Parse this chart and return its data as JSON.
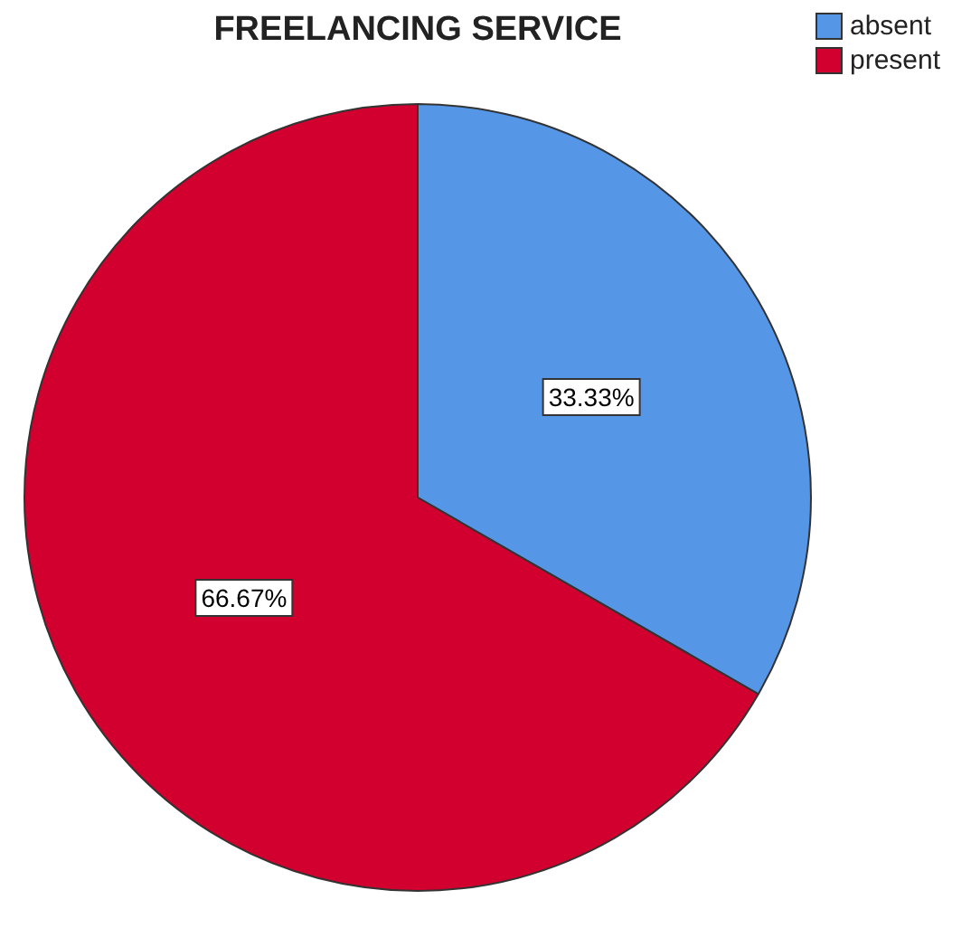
{
  "chart_data": {
    "type": "pie",
    "title": "FREELANCING SERVICE",
    "categories": [
      "absent",
      "present"
    ],
    "values": [
      33.33,
      66.67
    ],
    "colors": [
      "#5596e6",
      "#d1002f"
    ],
    "value_labels": [
      "33.33%",
      "66.67%"
    ],
    "legend": "top right"
  }
}
